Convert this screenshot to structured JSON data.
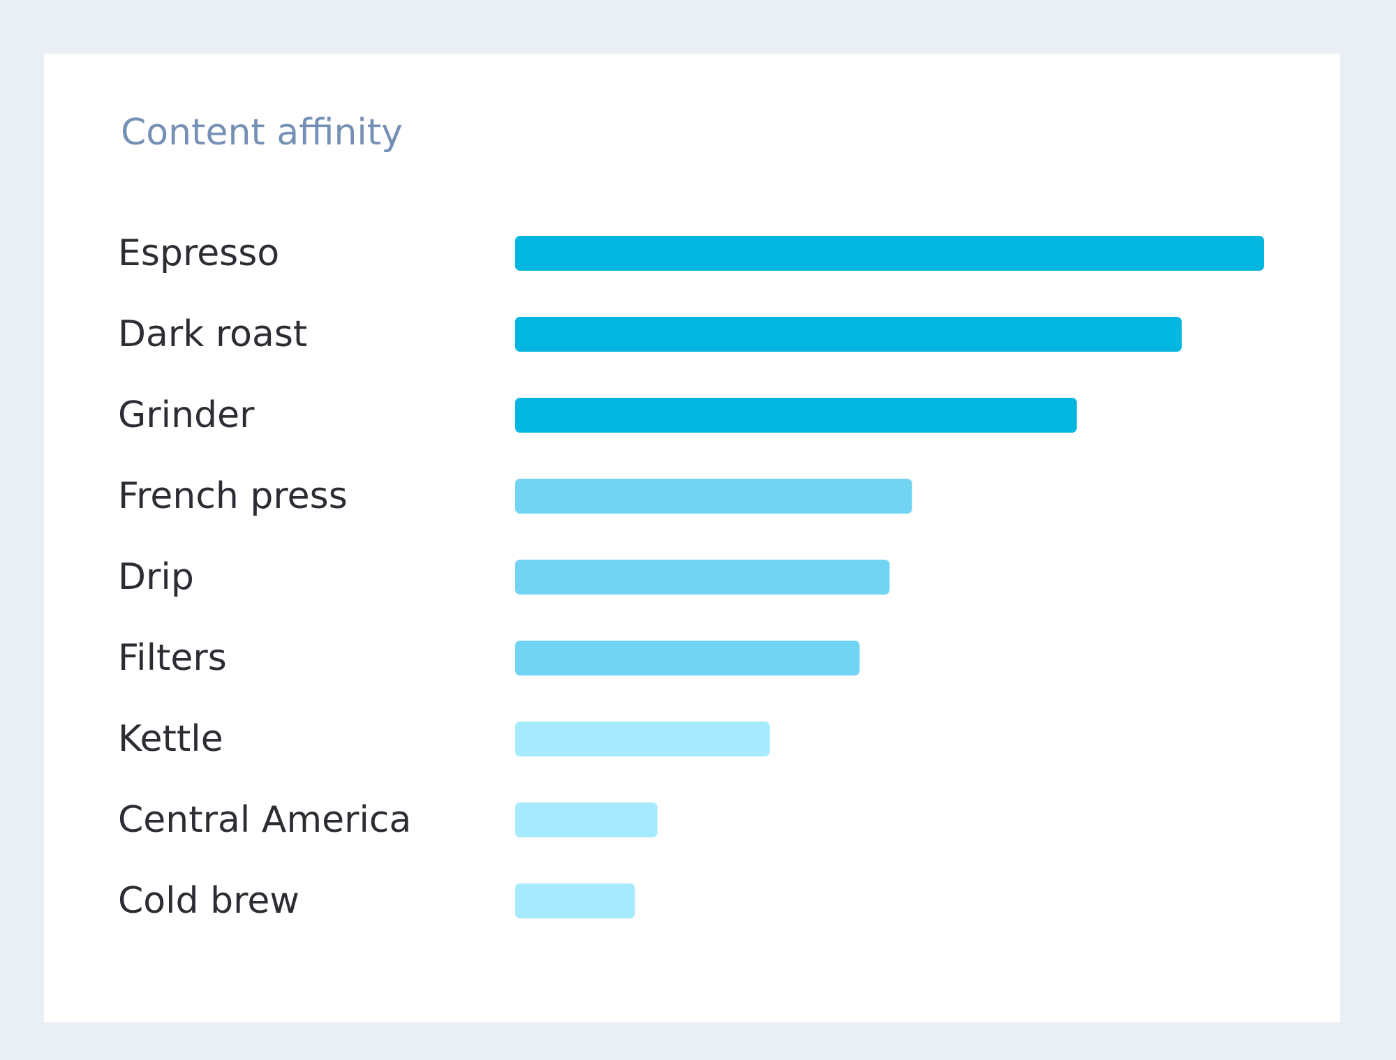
{
  "chart_data": {
    "type": "bar",
    "orientation": "horizontal",
    "title": "Content affinity",
    "xlabel": "",
    "ylabel": "",
    "grid": false,
    "xlim": [
      0,
      100
    ],
    "categories": [
      "Espresso",
      "Dark roast",
      "Grinder",
      "French press",
      "Drip",
      "Filters",
      "Kettle",
      "Central America",
      "Cold brew"
    ],
    "values": [
      100,
      89,
      75,
      53,
      50,
      46,
      34,
      19,
      16
    ],
    "tiers": [
      "high",
      "high",
      "high",
      "medium",
      "medium",
      "medium",
      "low",
      "low",
      "low"
    ],
    "colors": {
      "high": "#02b6e0",
      "medium": "#71d4f3",
      "low": "#a5eafd"
    }
  }
}
